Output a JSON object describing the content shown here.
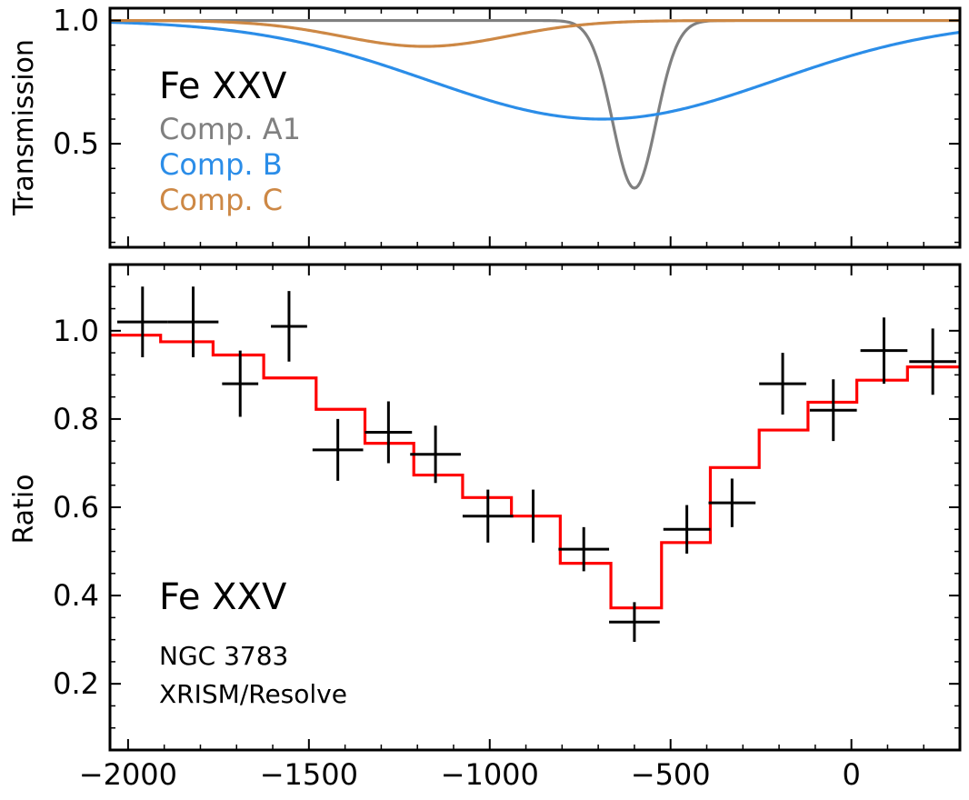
{
  "chart_data": [
    {
      "type": "line",
      "panel": "top",
      "ylabel": "Transmission",
      "xlim": [
        -2050,
        300
      ],
      "ylim": [
        0.08,
        1.05
      ],
      "yticks": [
        "1.0",
        "0.5"
      ],
      "ytick_values": [
        1.0,
        0.5
      ],
      "annotation": "Fe XXV",
      "series": [
        {
          "name": "Comp. A1",
          "color": "#808080",
          "kind": "gaussian_absorption",
          "depth": 0.68,
          "center": -600,
          "sigma": 60
        },
        {
          "name": "Comp. B",
          "color": "#2b8de8",
          "kind": "gaussian_absorption",
          "depth": 0.4,
          "center": -690,
          "sigma": 480
        },
        {
          "name": "Comp. C",
          "color": "#cd8845",
          "kind": "gaussian_absorption",
          "depth": 0.105,
          "center": -1180,
          "sigma": 230
        }
      ]
    },
    {
      "type": "scatter",
      "panel": "bottom",
      "ylabel": "Ratio",
      "xlim": [
        -2050,
        300
      ],
      "ylim": [
        0.05,
        1.15
      ],
      "xticks": [
        "−2000",
        "−1500",
        "−1000",
        "−500",
        "0"
      ],
      "xtick_values": [
        -2000,
        -1500,
        -1000,
        -500,
        0
      ],
      "yticks": [
        "1.0",
        "0.8",
        "0.6",
        "0.4",
        "0.2"
      ],
      "ytick_values": [
        1.0,
        0.8,
        0.6,
        0.4,
        0.2
      ],
      "annotations": [
        "Fe XXV",
        "NGC 3783",
        "XRISM/Resolve"
      ],
      "data_points": [
        {
          "x": -1960,
          "xerr": 70,
          "y": 1.02,
          "yerr": 0.08
        },
        {
          "x": -1820,
          "xerr": 70,
          "y": 1.02,
          "yerr": 0.08
        },
        {
          "x": -1690,
          "xerr": 50,
          "y": 0.88,
          "yerr": 0.075
        },
        {
          "x": -1555,
          "xerr": 50,
          "y": 1.01,
          "yerr": 0.08
        },
        {
          "x": -1420,
          "xerr": 70,
          "y": 0.73,
          "yerr": 0.07
        },
        {
          "x": -1280,
          "xerr": 65,
          "y": 0.77,
          "yerr": 0.07
        },
        {
          "x": -1150,
          "xerr": 70,
          "y": 0.72,
          "yerr": 0.065
        },
        {
          "x": -1005,
          "xerr": 70,
          "y": 0.58,
          "yerr": 0.06
        },
        {
          "x": -880,
          "xerr": 0,
          "y": 0.58,
          "yerr": 0.06
        },
        {
          "x": -740,
          "xerr": 70,
          "y": 0.505,
          "yerr": 0.05
        },
        {
          "x": -600,
          "xerr": 70,
          "y": 0.34,
          "yerr": 0.045
        },
        {
          "x": -455,
          "xerr": 65,
          "y": 0.55,
          "yerr": 0.055
        },
        {
          "x": -330,
          "xerr": 65,
          "y": 0.61,
          "yerr": 0.055
        },
        {
          "x": -190,
          "xerr": 65,
          "y": 0.88,
          "yerr": 0.07
        },
        {
          "x": -50,
          "xerr": 65,
          "y": 0.82,
          "yerr": 0.07
        },
        {
          "x": 90,
          "xerr": 65,
          "y": 0.955,
          "yerr": 0.075
        },
        {
          "x": 225,
          "xerr": 65,
          "y": 0.93,
          "yerr": 0.075
        }
      ],
      "model_step": {
        "name": "model",
        "color": "#ff0000",
        "edges": [
          -2050,
          -1910,
          -1765,
          -1625,
          -1480,
          -1345,
          -1210,
          -1075,
          -940,
          -805,
          -665,
          -525,
          -390,
          -255,
          -120,
          15,
          155,
          300
        ],
        "values": [
          0.99,
          0.975,
          0.945,
          0.893,
          0.822,
          0.745,
          0.673,
          0.622,
          0.58,
          0.473,
          0.372,
          0.52,
          0.69,
          0.775,
          0.838,
          0.888,
          0.918
        ]
      }
    }
  ]
}
